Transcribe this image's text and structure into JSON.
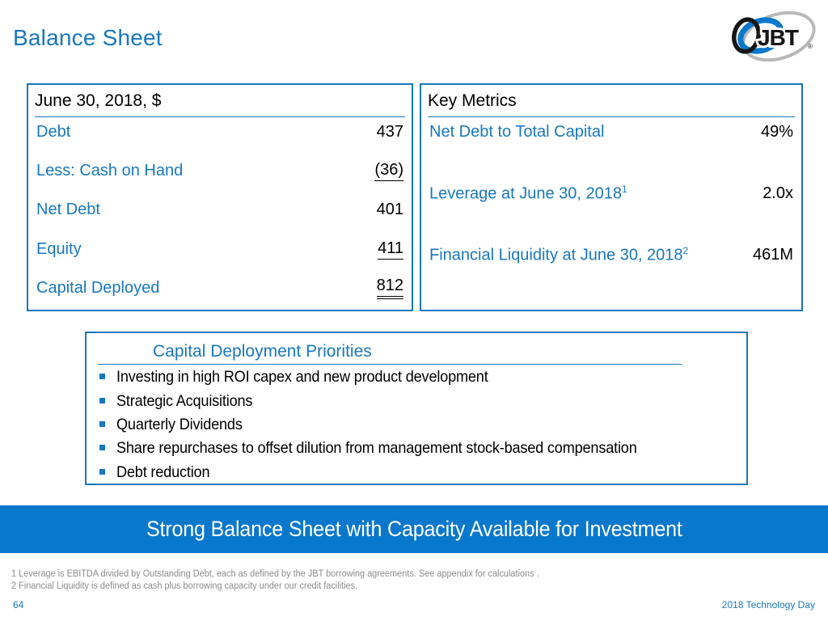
{
  "slide": {
    "title": "Balance Sheet",
    "page_number": "64",
    "footer_right": "2018 Technology Day"
  },
  "logo": {
    "text": "JBT",
    "registered_mark": "®"
  },
  "balance_table": {
    "header": "June 30, 2018, $",
    "rows": [
      {
        "label": "Debt",
        "value": "437",
        "underline": "none"
      },
      {
        "label": "Less: Cash on Hand",
        "value": "(36)",
        "underline": "single"
      },
      {
        "label": "Net Debt",
        "value": "401",
        "underline": "none"
      },
      {
        "label": "Equity",
        "value": "411",
        "underline": "single"
      },
      {
        "label": "Capital Deployed",
        "value": "812",
        "underline": "double"
      }
    ]
  },
  "key_metrics": {
    "header": "Key Metrics",
    "rows": [
      {
        "label": "Net Debt to Total Capital",
        "sup": "",
        "value": "49%"
      },
      {
        "label": "Leverage at June 30, 2018",
        "sup": "1",
        "value": "2.0x"
      },
      {
        "label": "Financial Liquidity at June 30, 2018",
        "sup": "2",
        "value": "461M"
      }
    ]
  },
  "priorities": {
    "header": "Capital Deployment Priorities",
    "items": [
      "Investing in high ROI capex and new product development",
      "Strategic Acquisitions",
      "Quarterly Dividends",
      "Share repurchases to offset dilution from management stock-based compensation",
      "Debt reduction"
    ]
  },
  "banner": {
    "text": "Strong Balance Sheet with Capacity Available for Investment"
  },
  "footnotes": [
    "1  Leverage is EBITDA divided by Outstanding Debt, each as defined by the JBT borrowing agreements. See appendix for calculations .",
    "2  Financial Liquidity is defined as cash plus borrowing capacity under our credit facilities."
  ],
  "colors": {
    "accent_blue": "#1878be",
    "banner_blue": "#0878cc",
    "footnote_gray": "#8c8c8c",
    "logo_gray": "#b9b9b9",
    "logo_black": "#161616"
  }
}
